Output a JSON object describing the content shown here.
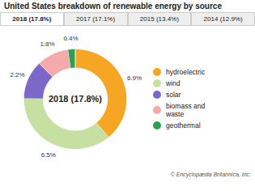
{
  "chart_data": {
    "type": "donut",
    "title": "United States breakdown of renewable energy by source",
    "tabs": [
      "2018 (17.8%)",
      "2017 (17.1%)",
      "2015 (13.4%)",
      "2014 (12.9%)"
    ],
    "center_label": "2018 (17.8%)",
    "categories": [
      "hydroelectric",
      "wind",
      "solar",
      "biomass and\nwaste",
      "geothermal"
    ],
    "values": [
      6.9,
      6.5,
      2.2,
      1.8,
      0.4
    ],
    "value_labels": [
      "6.9%",
      "6.5%",
      "2.2%",
      "1.8%",
      "0.4%"
    ],
    "colors": [
      "#F5A623",
      "#C5E0A0",
      "#7B68C8",
      "#F4AAAA",
      "#2E9E4F"
    ],
    "data_labels": true,
    "legend": "right",
    "footnote": "© Encyclopædia Britannica, Inc."
  }
}
